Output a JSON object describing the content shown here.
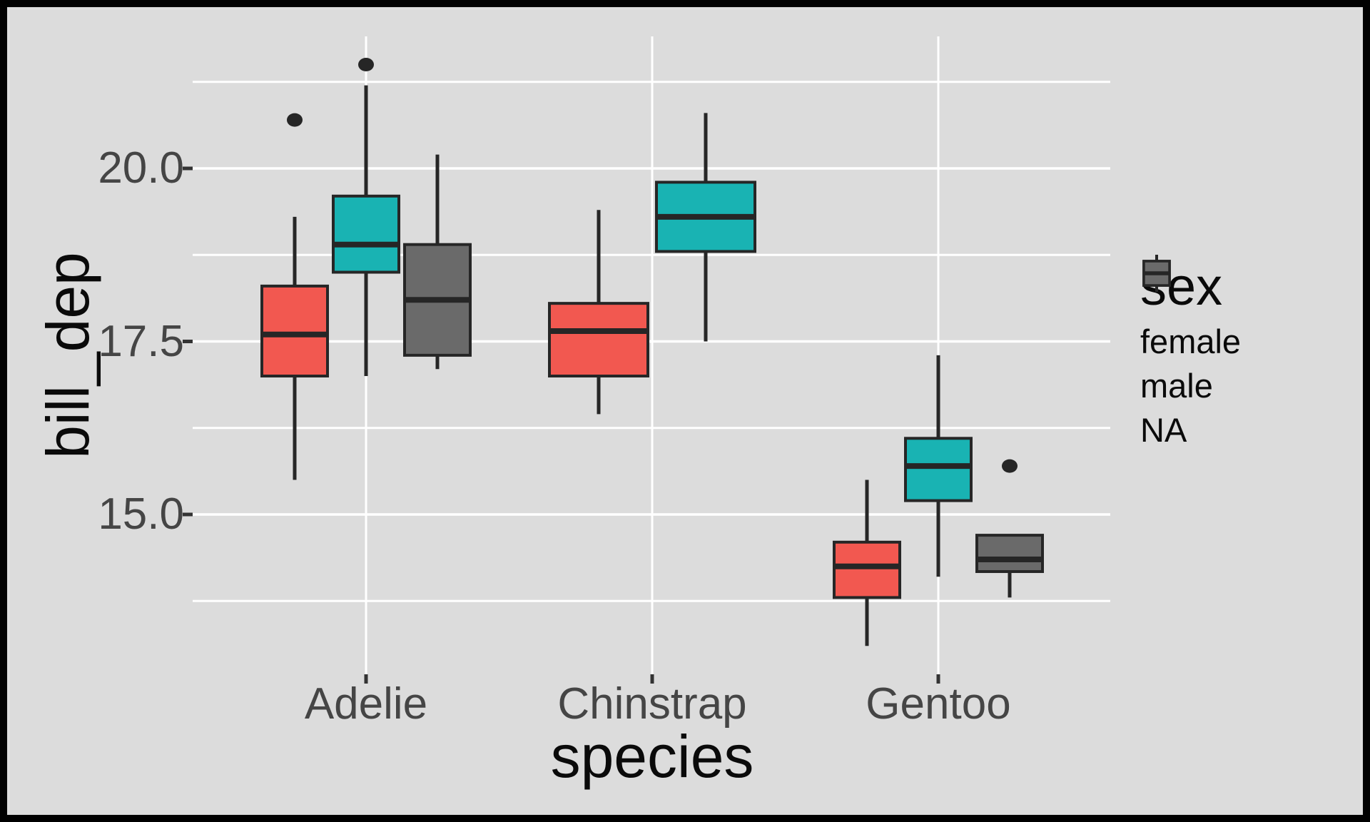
{
  "figure": {
    "background": "#dcdcdc",
    "outer_border_color": "#000000"
  },
  "chart_data": {
    "type": "boxplot",
    "title": "",
    "xlabel": "species",
    "ylabel": "bill_dep",
    "categories": [
      "Adelie",
      "Chinstrap",
      "Gentoo"
    ],
    "y_axis": {
      "major_ticks": [
        {
          "value": 15.0,
          "label": "15.0"
        },
        {
          "value": 17.5,
          "label": "17.5"
        },
        {
          "value": 20.0,
          "label": "20.0"
        }
      ],
      "minor_ticks": [
        13.75,
        16.25,
        18.75,
        21.25
      ],
      "range": [
        12.69,
        21.91
      ],
      "grid": "on"
    },
    "legend": {
      "title": "sex",
      "position": "right",
      "entries": [
        {
          "label": "female",
          "color": "#f25850"
        },
        {
          "label": "male",
          "color": "#19b3b3"
        },
        {
          "label": "NA",
          "color": "#6a6a6a"
        }
      ]
    },
    "series": [
      {
        "name": "female",
        "color": "#f25850",
        "boxes": [
          {
            "whisker_low": 15.5,
            "q1": 17.0,
            "median": 17.6,
            "q3": 18.3,
            "whisker_high": 19.3,
            "outliers": [
              20.7
            ]
          },
          {
            "whisker_low": 16.45,
            "q1": 17.0,
            "median": 17.65,
            "q3": 18.05,
            "whisker_high": 19.4,
            "outliers": []
          },
          {
            "whisker_low": 13.1,
            "q1": 13.8,
            "median": 14.25,
            "q3": 14.6,
            "whisker_high": 15.5,
            "outliers": []
          }
        ]
      },
      {
        "name": "male",
        "color": "#19b3b3",
        "boxes": [
          {
            "whisker_low": 17.0,
            "q1": 18.5,
            "median": 18.9,
            "q3": 19.6,
            "whisker_high": 21.2,
            "outliers": [
              21.5
            ]
          },
          {
            "whisker_low": 17.5,
            "q1": 18.8,
            "median": 19.3,
            "q3": 19.8,
            "whisker_high": 20.8,
            "outliers": []
          },
          {
            "whisker_low": 14.1,
            "q1": 15.2,
            "median": 15.7,
            "q3": 16.1,
            "whisker_high": 17.3,
            "outliers": []
          }
        ]
      },
      {
        "name": "NA",
        "color": "#6a6a6a",
        "boxes": [
          {
            "whisker_low": 17.1,
            "q1": 17.3,
            "median": 18.1,
            "q3": 18.9,
            "whisker_high": 20.2,
            "outliers": []
          },
          null,
          {
            "whisker_low": 13.8,
            "q1": 14.175,
            "median": 14.35,
            "q3": 14.7,
            "whisker_high": 14.7,
            "outliers": [
              15.7
            ]
          }
        ]
      }
    ],
    "style": {
      "background": "#dcdcdc",
      "grid_color": "#ffffff",
      "box_outline": "#262626",
      "median_color": "#262626",
      "whisker_color": "#262626",
      "outlier_color": "#262626",
      "axis_tick_color": "#333333",
      "tick_label_color": "#454545",
      "title_color": "#0a0a0a"
    }
  }
}
